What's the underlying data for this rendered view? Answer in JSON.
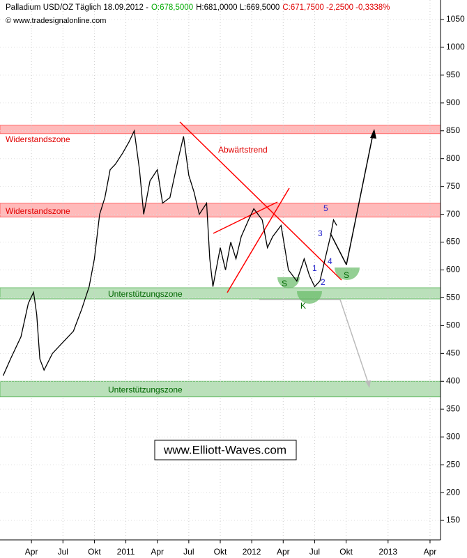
{
  "chart_data": {
    "type": "line",
    "header": [
      {
        "text": "Palladium USD/OZ Täglich  18.09.2012 -",
        "color": "#000000"
      },
      {
        "text": "O:678,5000",
        "color": "#00aa00"
      },
      {
        "text": "H:681,0000 L:669,5000",
        "color": "#000000"
      },
      {
        "text": "C:671,7500 -2,2500 -0,3338%",
        "color": "#e00000"
      }
    ],
    "source": "© www.tradesignalonline.com",
    "watermark": "www.Elliott-Waves.com",
    "x": [
      0.3,
      1,
      2,
      2.7,
      3.2,
      3.5,
      3.8,
      4.2,
      5,
      6,
      7,
      7.8,
      8.5,
      9,
      9.5,
      10,
      10.5,
      11,
      11.7,
      12.3,
      12.8,
      13.3,
      13.7,
      14.3,
      15,
      15.5,
      16.2,
      17,
      17.5,
      18,
      18.5,
      19,
      19.7,
      20,
      20.3,
      21,
      21.5,
      22,
      22.5,
      23,
      23.7,
      24.2,
      25,
      25.5,
      26,
      26.8,
      27.5,
      28.3,
      29,
      29.5,
      30,
      30.5,
      31,
      31.5,
      31.8,
      32.1
    ],
    "series": [
      {
        "name": "Palladium",
        "color": "#000000",
        "values": [
          410,
          440,
          480,
          540,
          560,
          520,
          440,
          420,
          450,
          470,
          490,
          530,
          570,
          620,
          700,
          730,
          780,
          790,
          810,
          830,
          850,
          780,
          700,
          760,
          780,
          720,
          730,
          800,
          840,
          770,
          740,
          700,
          720,
          620,
          570,
          640,
          600,
          650,
          620,
          660,
          690,
          710,
          690,
          640,
          660,
          680,
          600,
          580,
          620,
          590,
          570,
          580,
          620,
          660,
          690,
          680
        ]
      }
    ],
    "xlim": [
      0,
      42
    ],
    "xticks": [
      {
        "value": 3,
        "label": "Apr"
      },
      {
        "value": 6,
        "label": "Jul"
      },
      {
        "value": 9,
        "label": "Okt"
      },
      {
        "value": 12,
        "label": "2011"
      },
      {
        "value": 15,
        "label": "Apr"
      },
      {
        "value": 18,
        "label": "Jul"
      },
      {
        "value": 21,
        "label": "Okt"
      },
      {
        "value": 24,
        "label": "2012"
      },
      {
        "value": 27,
        "label": "Apr"
      },
      {
        "value": 30,
        "label": "Jul"
      },
      {
        "value": 33,
        "label": "Okt"
      },
      {
        "value": 37,
        "label": "2013"
      },
      {
        "value": 41,
        "label": "Apr"
      }
    ],
    "ylim": [
      115,
      1085
    ],
    "yticks": [
      150,
      200,
      250,
      300,
      350,
      400,
      450,
      500,
      550,
      600,
      650,
      700,
      750,
      800,
      850,
      900,
      950,
      1000,
      1050
    ],
    "grid": true,
    "zones": [
      {
        "name": "Widerstandszone",
        "range": [
          845,
          860
        ],
        "color": "#ff6666"
      },
      {
        "name": "Widerstandszone",
        "range": [
          695,
          720
        ],
        "color": "#ff6666"
      },
      {
        "name": "Unterstützungszone",
        "range": [
          548,
          568
        ],
        "color": "#66bb66"
      },
      {
        "name": "Unterstützungszone",
        "range": [
          372,
          400
        ],
        "color": "#66bb66"
      }
    ],
    "annotations": [
      "Abwärtstrend",
      "1",
      "2",
      "3",
      "4",
      "5",
      "S",
      "S",
      "K"
    ]
  }
}
